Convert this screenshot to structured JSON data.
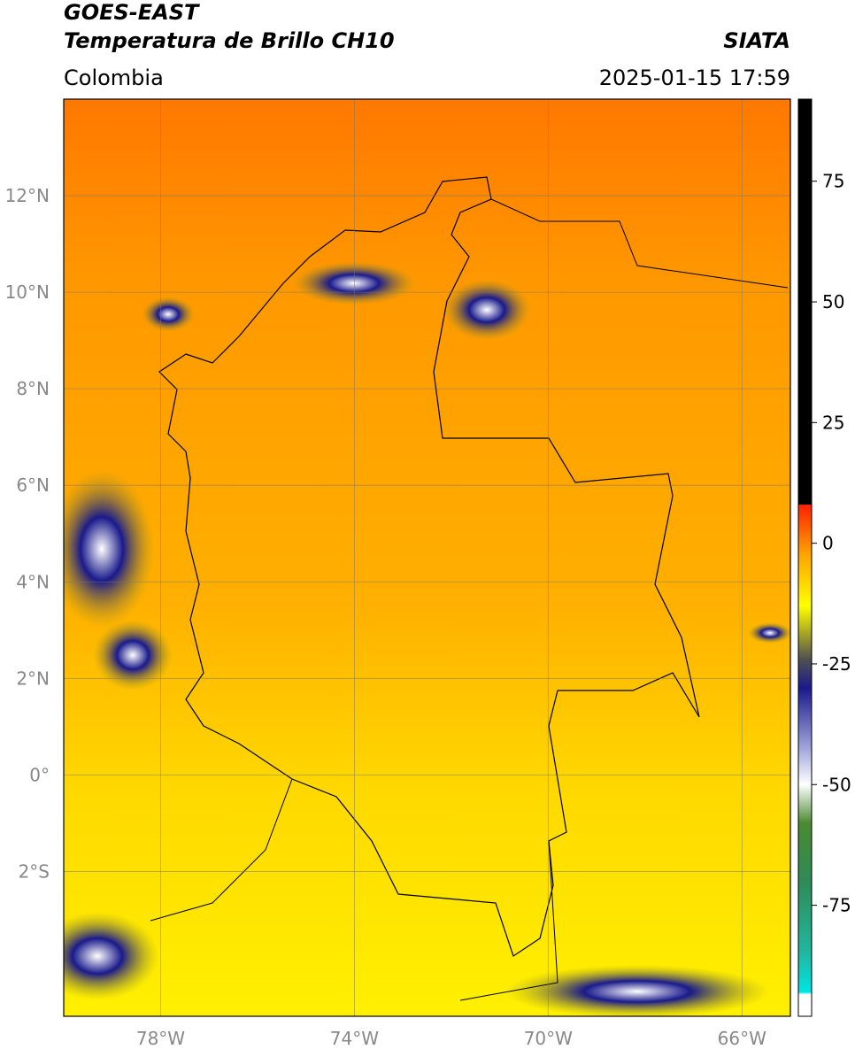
{
  "header": {
    "title": "GOES-EAST",
    "subtitle": "Temperatura de Brillo CH10",
    "source": "SIATA",
    "region": "Colombia",
    "datetime": "2025-01-15 17:59"
  },
  "map": {
    "xlim": [
      -80,
      -65
    ],
    "ylim": [
      -5,
      14
    ],
    "grid": true,
    "xticks": [
      {
        "value": -78,
        "label": "78°W"
      },
      {
        "value": -74,
        "label": "74°W"
      },
      {
        "value": -70,
        "label": "70°W"
      },
      {
        "value": -66,
        "label": "66°W"
      }
    ],
    "yticks": [
      {
        "value": 12,
        "label": "12°N"
      },
      {
        "value": 10,
        "label": "10°N"
      },
      {
        "value": 8,
        "label": "8°N"
      },
      {
        "value": 6,
        "label": "6°N"
      },
      {
        "value": 4,
        "label": "4°N"
      },
      {
        "value": 2,
        "label": "2°N"
      },
      {
        "value": 0,
        "label": "0°"
      },
      {
        "value": -2,
        "label": "2°S"
      }
    ]
  },
  "colorbar": {
    "lim": [
      -98,
      92
    ],
    "ticks": [
      75,
      50,
      25,
      0,
      -25,
      -50,
      -75
    ],
    "stops": [
      {
        "value": -98,
        "color": "#ffffff"
      },
      {
        "value": -93.5,
        "color": "#ffffff"
      },
      {
        "value": -93,
        "color": "#00e5e5"
      },
      {
        "value": -85,
        "color": "#20b8a0"
      },
      {
        "value": -70,
        "color": "#2e8b57"
      },
      {
        "value": -58,
        "color": "#4a8a30"
      },
      {
        "value": -50,
        "color": "#ffffff"
      },
      {
        "value": -42,
        "color": "#9aa0d8"
      },
      {
        "value": -30,
        "color": "#1a1a8c"
      },
      {
        "value": -24,
        "color": "#505050"
      },
      {
        "value": -18,
        "color": "#b0b020"
      },
      {
        "value": -13,
        "color": "#ffff00"
      },
      {
        "value": -2,
        "color": "#ffa000"
      },
      {
        "value": 8,
        "color": "#ff2000"
      },
      {
        "value": 8,
        "color": "#000000"
      },
      {
        "value": 92,
        "color": "#000000"
      }
    ]
  }
}
